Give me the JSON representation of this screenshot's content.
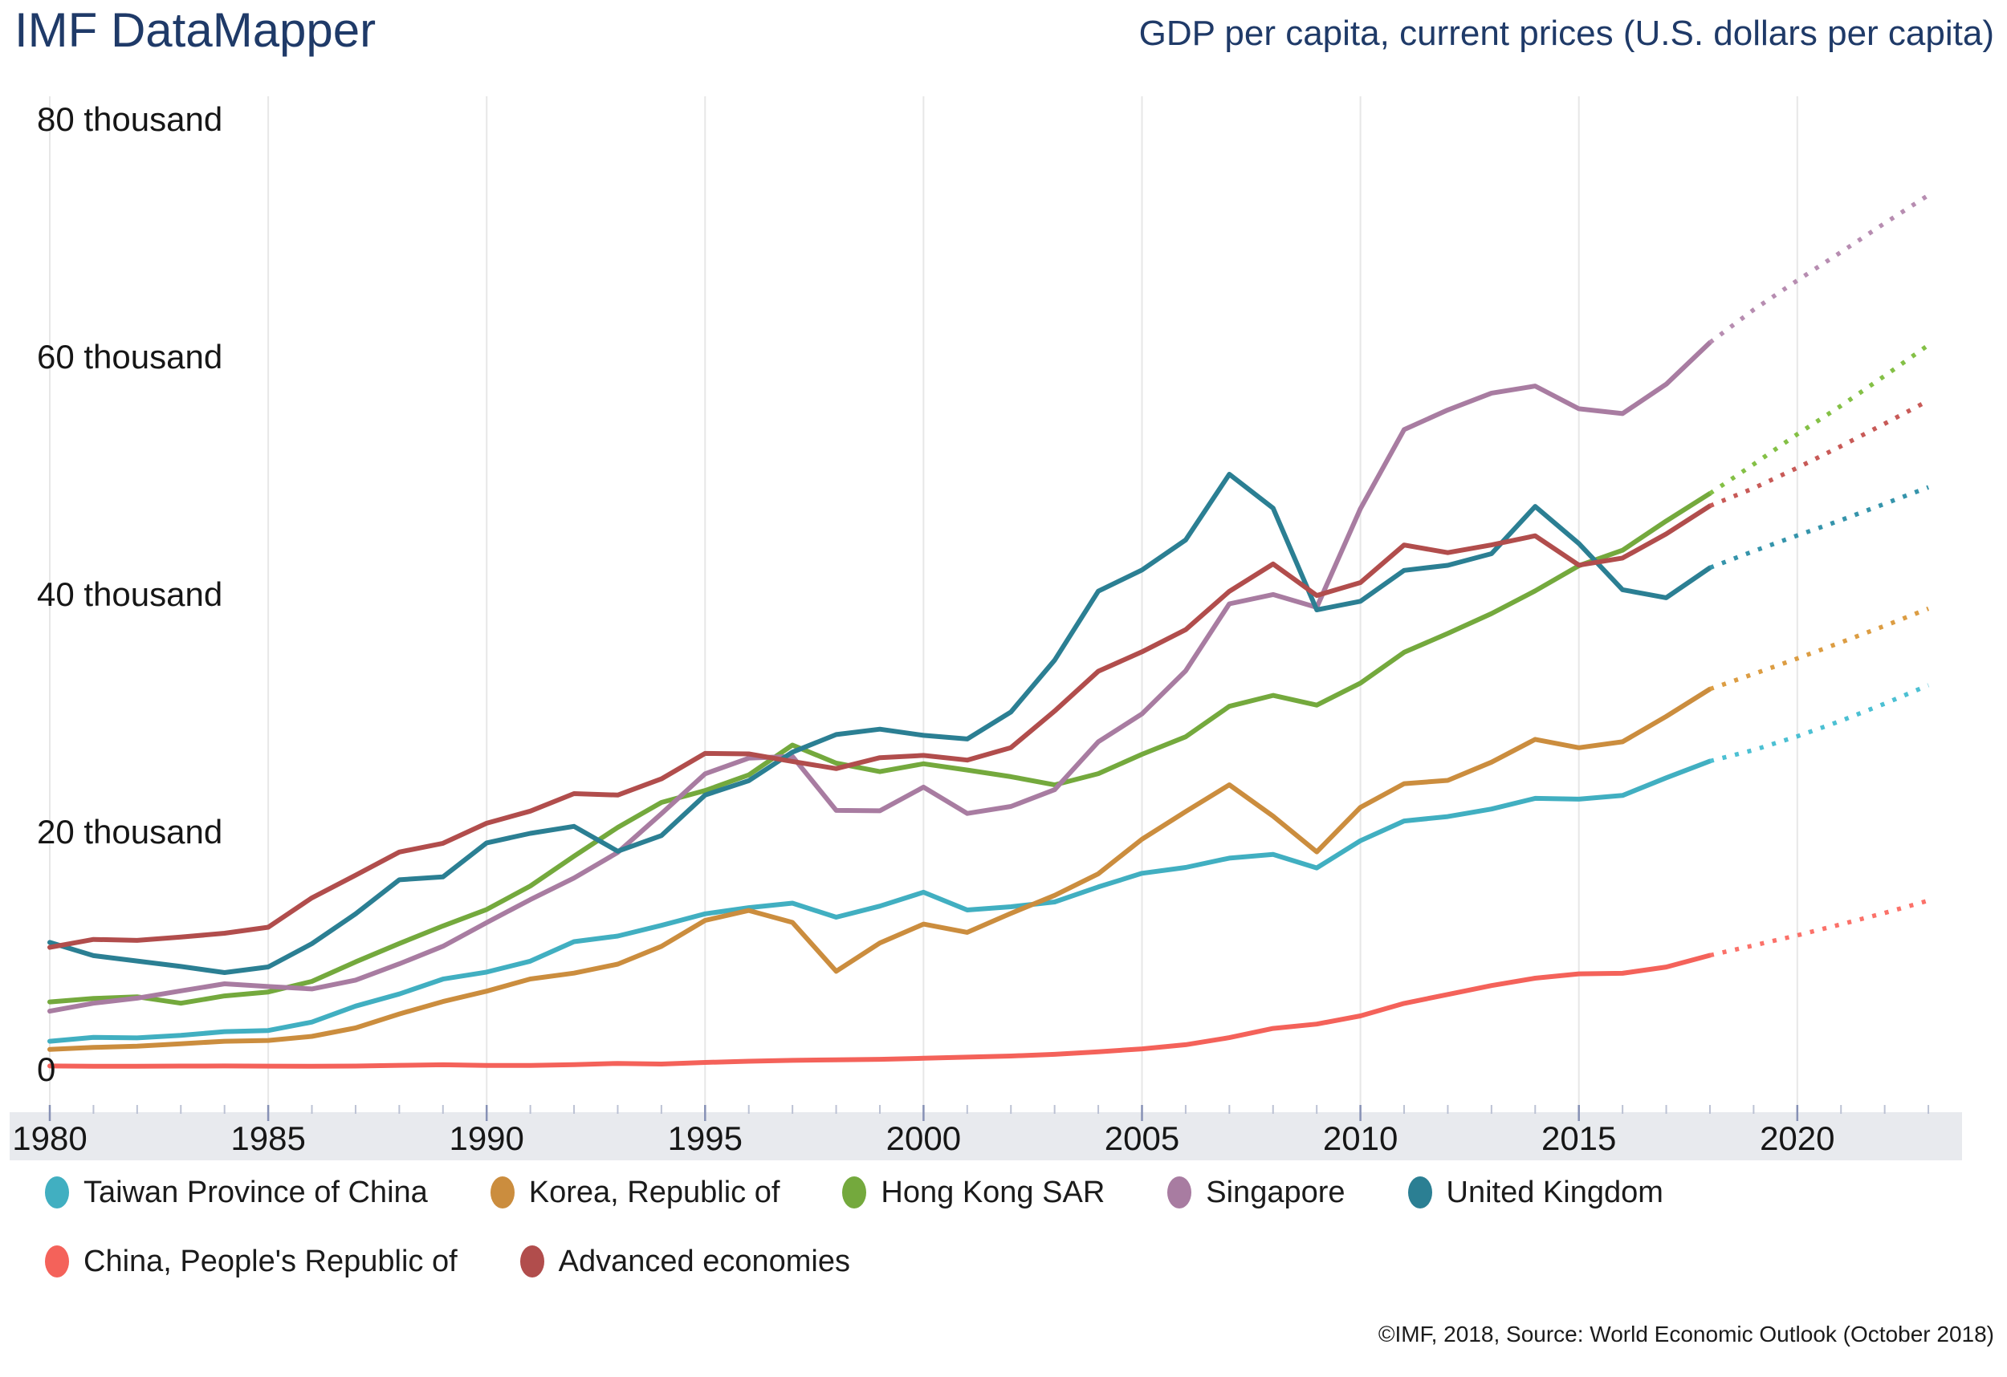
{
  "header": {
    "title": "IMF DataMapper",
    "subtitle": "GDP per capita, current prices (U.S. dollars per capita)"
  },
  "footer": {
    "attribution": "©IMF, 2018, Source: World Economic Outlook (October 2018)"
  },
  "y_axis": {
    "labels": [
      {
        "value": 80000,
        "label": "80 thousand"
      },
      {
        "value": 60000,
        "label": "60 thousand"
      },
      {
        "value": 40000,
        "label": "40 thousand"
      },
      {
        "value": 20000,
        "label": "20 thousand"
      },
      {
        "value": 0,
        "label": "0"
      }
    ]
  },
  "x_axis": {
    "labeled_years": [
      1980,
      1985,
      1990,
      1995,
      2000,
      2005,
      2010,
      2015,
      2020
    ],
    "range": [
      1980,
      2023
    ],
    "band_color": "#e8eaee",
    "major_tick_color": "#8791b5",
    "minor_tick_color": "#bcc2d4"
  },
  "legend": {
    "rows": [
      [
        0,
        1,
        2,
        3,
        4
      ],
      [
        5,
        6
      ]
    ]
  },
  "chart_data": {
    "type": "line",
    "title": "GDP per capita, current prices (U.S. dollars per capita)",
    "xlabel": "",
    "ylabel": "U.S. dollars per capita",
    "ylim": [
      0,
      80000
    ],
    "grid": "vertical-only",
    "legend_position": "bottom",
    "solid_until": 2018,
    "projection_style": "dotted",
    "years": [
      1980,
      1981,
      1982,
      1983,
      1984,
      1985,
      1986,
      1987,
      1988,
      1989,
      1990,
      1991,
      1992,
      1993,
      1994,
      1995,
      1996,
      1997,
      1998,
      1999,
      2000,
      2001,
      2002,
      2003,
      2004,
      2005,
      2006,
      2007,
      2008,
      2009,
      2010,
      2011,
      2012,
      2013,
      2014,
      2015,
      2016,
      2017,
      2018,
      2019,
      2020,
      2021,
      2022,
      2023
    ],
    "series": [
      {
        "name": "Taiwan Province of China",
        "slug": "taiwan",
        "color": "#41afc1",
        "proj_color": "#4cc0d3",
        "values": [
          2389,
          2720,
          2675,
          2882,
          3203,
          3295,
          4010,
          5350,
          6370,
          7626,
          8216,
          9136,
          10778,
          11251,
          12150,
          13119,
          13641,
          14020,
          12840,
          13768,
          14941,
          13448,
          13716,
          14120,
          15388,
          16532,
          17026,
          17814,
          18131,
          16988,
          19278,
          20939,
          21308,
          21945,
          22844,
          22780,
          23091,
          24577,
          25977,
          26910,
          28066,
          29375,
          30816,
          32373
        ]
      },
      {
        "name": "Korea, Republic of",
        "slug": "korea",
        "color": "#cb8d3e",
        "proj_color": "#dc9d43",
        "values": [
          1704,
          1870,
          1977,
          2181,
          2391,
          2457,
          2803,
          3511,
          4686,
          5737,
          6610,
          7637,
          8126,
          8885,
          10385,
          12565,
          13403,
          12398,
          8281,
          10672,
          12257,
          11561,
          13165,
          14673,
          16496,
          19403,
          21731,
          23989,
          21345,
          18339,
          22087,
          24080,
          24359,
          25890,
          27811,
          27105,
          27608,
          29743,
          32046,
          33320,
          34623,
          35983,
          37374,
          38824
        ]
      },
      {
        "name": "Hong Kong SAR",
        "slug": "hong-kong",
        "color": "#74a93d",
        "proj_color": "#84c046",
        "values": [
          5700,
          5991,
          6134,
          5595,
          6208,
          6543,
          7435,
          9071,
          10620,
          12098,
          13486,
          15466,
          17976,
          20396,
          22503,
          23497,
          24818,
          27330,
          25809,
          25092,
          25757,
          25230,
          24666,
          23977,
          24928,
          26552,
          28028,
          30594,
          31516,
          30697,
          32550,
          35142,
          36731,
          38404,
          40315,
          42431,
          43737,
          46194,
          48517,
          50972,
          53509,
          55899,
          58421,
          61016
        ]
      },
      {
        "name": "Singapore",
        "slug": "singapore",
        "color": "#a87ca1",
        "proj_color": "#b78db1",
        "values": [
          4928,
          5596,
          6021,
          6633,
          7228,
          7002,
          6799,
          7539,
          8914,
          10395,
          12387,
          14317,
          16136,
          18290,
          21552,
          24914,
          26233,
          26376,
          21829,
          21796,
          23793,
          21577,
          22160,
          23573,
          27609,
          29961,
          33580,
          39224,
          40008,
          38927,
          47237,
          53890,
          55548,
          56967,
          57563,
          55647,
          55243,
          57714,
          61230,
          63987,
          66450,
          68836,
          71268,
          73633
        ]
      },
      {
        "name": "United Kingdom",
        "slug": "united-kingdom",
        "color": "#2b7f93",
        "proj_color": "#3594ab",
        "values": [
          10715,
          9599,
          9146,
          8691,
          8179,
          8652,
          10611,
          13118,
          15985,
          16239,
          19095,
          19900,
          20487,
          18389,
          19709,
          23123,
          24333,
          26734,
          28214,
          28671,
          28150,
          27847,
          30113,
          34479,
          40290,
          42075,
          44601,
          50134,
          47287,
          38713,
          39436,
          42039,
          42463,
          43445,
          47425,
          44305,
          40412,
          39735,
          42261,
          43659,
          44979,
          46267,
          47647,
          49040
        ]
      },
      {
        "name": "China, People's Republic of",
        "slug": "china",
        "color": "#f4625a",
        "proj_color": "#fb7169",
        "values": [
          309,
          291,
          284,
          304,
          314,
          296,
          283,
          303,
          368,
          409,
          348,
          359,
          423,
          526,
          473,
          609,
          707,
          781,
          828,
          872,
          959,
          1053,
          1148,
          1288,
          1508,
          1753,
          2099,
          2695,
          3471,
          3838,
          4524,
          5583,
          6329,
          7081,
          7702,
          8069,
          8117,
          8643,
          9630,
          10461,
          11312,
          12235,
          13193,
          14235
        ]
      },
      {
        "name": "Advanced economies",
        "slug": "advanced-economies",
        "color": "#b14d4c",
        "proj_color": "#c85a57",
        "values": [
          10300,
          10968,
          10884,
          11160,
          11489,
          11996,
          14467,
          16371,
          18326,
          19060,
          20751,
          21773,
          23244,
          23125,
          24488,
          26628,
          26588,
          25952,
          25350,
          26269,
          26459,
          26066,
          27112,
          30199,
          33549,
          35183,
          37048,
          40278,
          42580,
          39925,
          41016,
          44175,
          43532,
          44183,
          44953,
          42480,
          43080,
          45107,
          47471,
          48957,
          50674,
          52499,
          54394,
          56337
        ]
      }
    ]
  }
}
